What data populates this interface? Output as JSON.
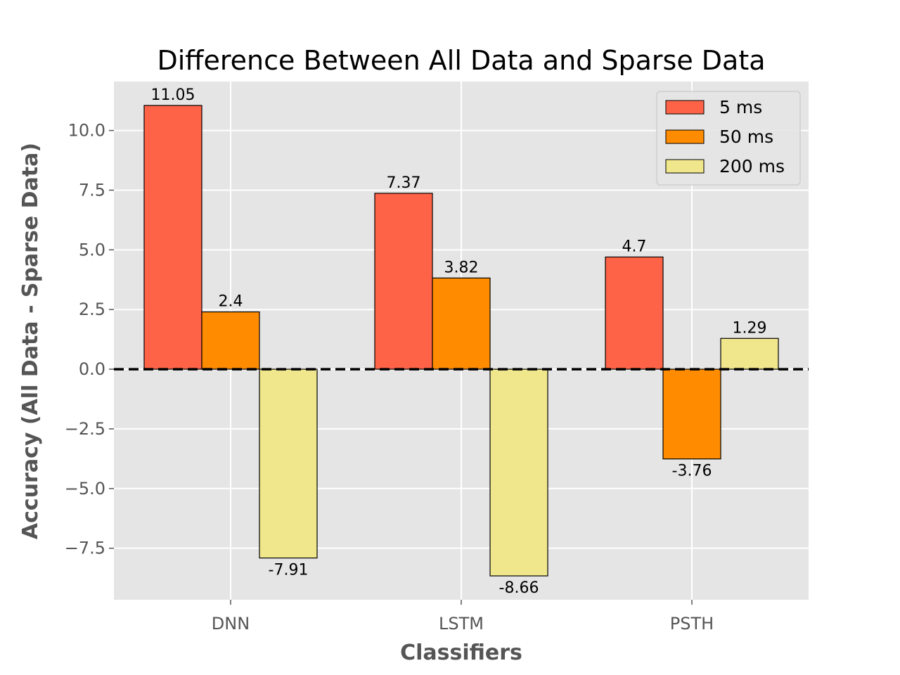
{
  "chart_data": {
    "type": "bar",
    "title": "Difference Between All Data and Sparse Data",
    "xlabel": "Classifiers",
    "ylabel": "Accuracy (All Data - Sparse Data)",
    "categories": [
      "DNN",
      "LSTM",
      "PSTH"
    ],
    "series": [
      {
        "name": "5 ms",
        "values": [
          11.05,
          7.37,
          4.7
        ],
        "labels": [
          "11.05",
          "7.37",
          "4.7"
        ],
        "color": "#ff6347"
      },
      {
        "name": "50 ms",
        "values": [
          2.4,
          3.82,
          -3.76
        ],
        "labels": [
          "2.4",
          "3.82",
          "-3.76"
        ],
        "color": "#ff8c00"
      },
      {
        "name": "200 ms",
        "values": [
          -7.91,
          -8.66,
          1.29
        ],
        "labels": [
          "-7.91",
          "-8.66",
          "1.29"
        ],
        "color": "#f0e68c"
      }
    ],
    "ylim": [
      -9.66,
      12.05
    ],
    "yticks": [
      -7.5,
      -5.0,
      -2.5,
      0.0,
      2.5,
      5.0,
      7.5,
      10.0
    ],
    "ytick_labels": [
      "−7.5",
      "−5.0",
      "−2.5",
      "0.0",
      "2.5",
      "5.0",
      "7.5",
      "10.0"
    ],
    "grid": true,
    "legend_position": "top-right",
    "reference_line": {
      "y": 0,
      "style": "dashed",
      "color": "#000000"
    },
    "background": "#e5e5e5"
  }
}
